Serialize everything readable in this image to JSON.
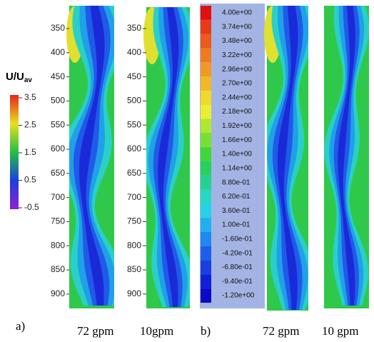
{
  "legend_a": {
    "title": "U/U",
    "title_sub": "av",
    "labels": [
      "3.5",
      "2.5",
      "1.5",
      "0.5",
      "-0.5"
    ]
  },
  "panel_a": {
    "yticks": [
      "350",
      "400",
      "450",
      "500",
      "550",
      "600",
      "650",
      "700",
      "750",
      "800",
      "850",
      "900"
    ],
    "plots": [
      "72 gpm",
      "10gpm"
    ],
    "label": "a)"
  },
  "legend_b": {
    "labels": [
      "4.00e+00",
      "3.74e+00",
      "3.48e+00",
      "3.22e+00",
      "2.96e+00",
      "2.70e+00",
      "2.44e+00",
      "2.18e+00",
      "1.92e+00",
      "1.66e+00",
      "1.40e+00",
      "1.14e+00",
      "8.80e-01",
      "6.20e-01",
      "3.60e-01",
      "1.00e-01",
      "-1.60e-01",
      "-4.20e-01",
      "-6.80e-01",
      "-9.40e-01",
      "-1.20e+00"
    ]
  },
  "panel_b": {
    "plots": [
      "72 gpm",
      "10 gpm"
    ],
    "label": "b)"
  }
}
